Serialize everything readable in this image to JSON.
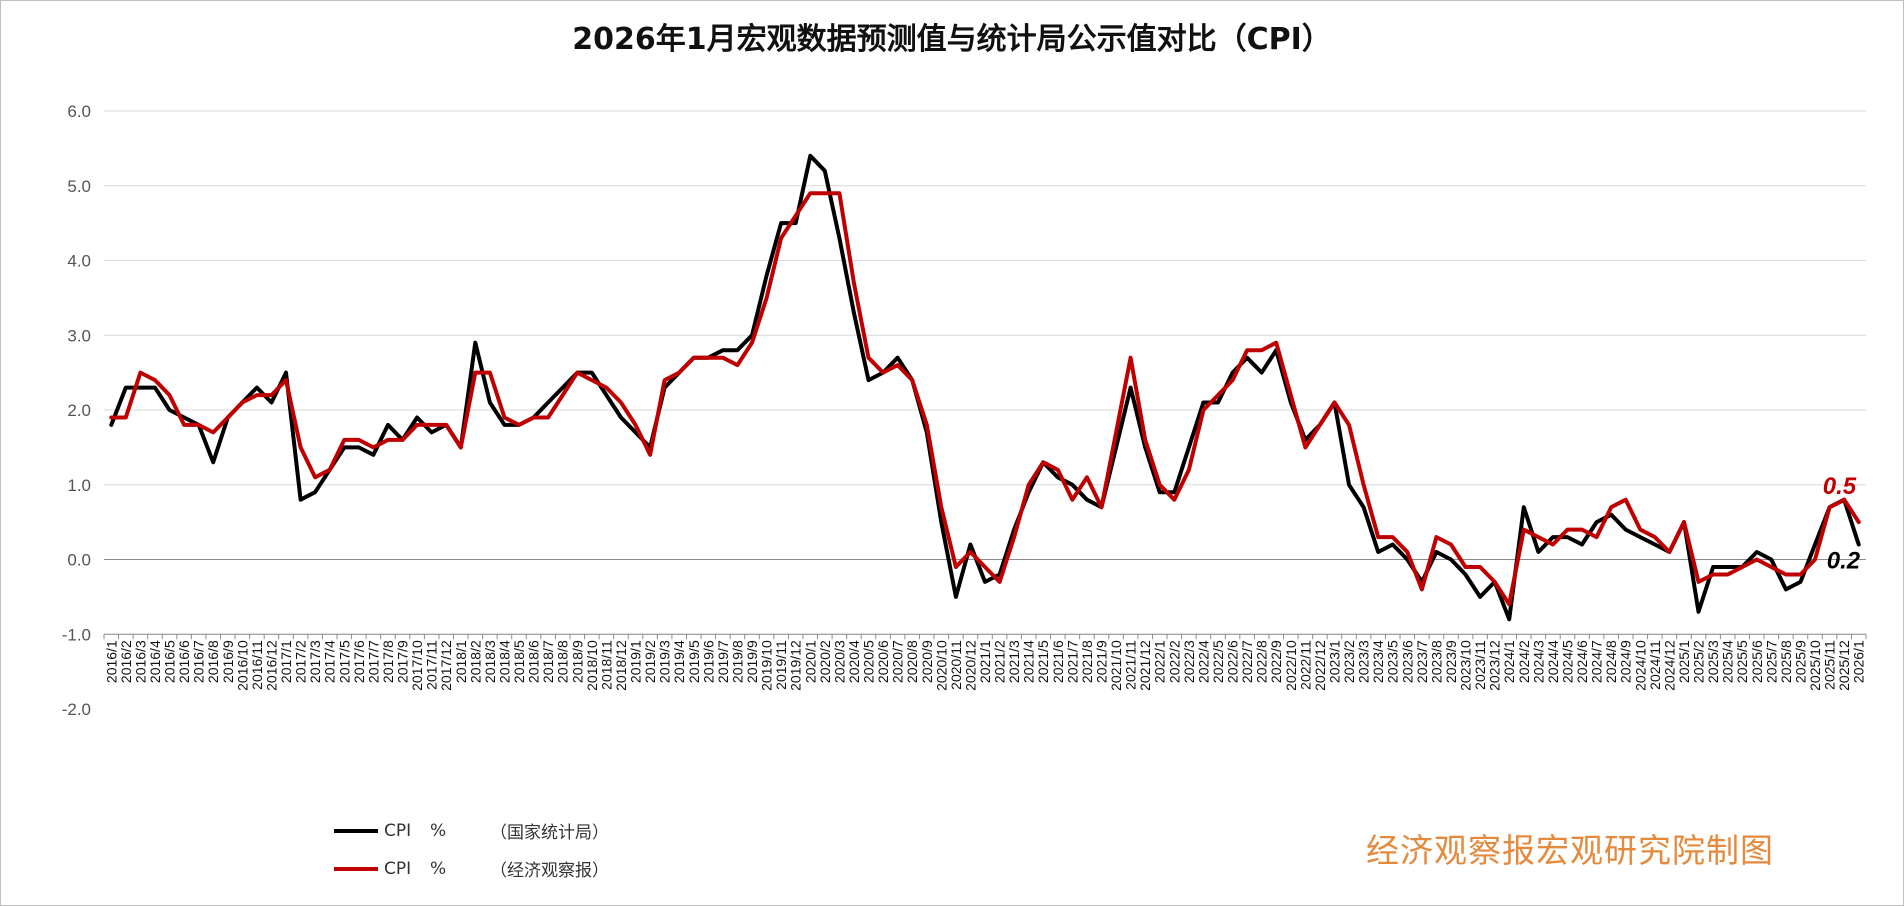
{
  "chart_data": {
    "type": "line",
    "title": "2026年1月宏观数据预测值与统计局公示值对比（CPI）",
    "xlabel": "",
    "ylabel": "",
    "ylim": [
      -2.0,
      6.0
    ],
    "yticks": [
      "6.0",
      "5.0",
      "4.0",
      "3.0",
      "2.0",
      "1.0",
      "0.0",
      "-1.0",
      "-2.0"
    ],
    "grid": true,
    "legend_position": "bottom-left",
    "x": [
      "2016/1",
      "2016/2",
      "2016/3",
      "2016/4",
      "2016/5",
      "2016/6",
      "2016/7",
      "2016/8",
      "2016/9",
      "2016/10",
      "2016/11",
      "2016/12",
      "2017/1",
      "2017/2",
      "2017/3",
      "2017/4",
      "2017/5",
      "2017/6",
      "2017/7",
      "2017/8",
      "2017/9",
      "2017/10",
      "2017/11",
      "2017/12",
      "2018/1",
      "2018/2",
      "2018/3",
      "2018/4",
      "2018/5",
      "2018/6",
      "2018/7",
      "2018/8",
      "2018/9",
      "2018/10",
      "2018/11",
      "2018/12",
      "2019/1",
      "2019/2",
      "2019/3",
      "2019/4",
      "2019/5",
      "2019/6",
      "2019/7",
      "2019/8",
      "2019/9",
      "2019/10",
      "2019/11",
      "2019/12",
      "2020/1",
      "2020/2",
      "2020/3",
      "2020/4",
      "2020/5",
      "2020/6",
      "2020/7",
      "2020/8",
      "2020/9",
      "2020/10",
      "2020/11",
      "2020/12",
      "2021/1",
      "2021/2",
      "2021/3",
      "2021/4",
      "2021/5",
      "2021/6",
      "2021/7",
      "2021/8",
      "2021/9",
      "2021/10",
      "2021/11",
      "2021/12",
      "2022/1",
      "2022/2",
      "2022/3",
      "2022/4",
      "2022/5",
      "2022/6",
      "2022/7",
      "2022/8",
      "2022/9",
      "2022/10",
      "2022/11",
      "2022/12",
      "2023/1",
      "2023/2",
      "2023/3",
      "2023/4",
      "2023/5",
      "2023/6",
      "2023/7",
      "2023/8",
      "2023/9",
      "2023/10",
      "2023/11",
      "2023/12",
      "2024/1",
      "2024/2",
      "2024/3",
      "2024/4",
      "2024/5",
      "2024/6",
      "2024/7",
      "2024/8",
      "2024/9",
      "2024/10",
      "2024/11",
      "2024/12",
      "2025/1",
      "2025/2",
      "2025/3",
      "2025/4",
      "2025/5",
      "2025/6",
      "2025/7",
      "2025/8",
      "2025/9",
      "2025/10",
      "2025/11",
      "2025/12",
      "2026/1"
    ],
    "series": [
      {
        "name": "CPI　%　（国家统计局）",
        "color": "#000000",
        "values": [
          1.8,
          2.3,
          2.3,
          2.3,
          2.0,
          1.9,
          1.8,
          1.3,
          1.9,
          2.1,
          2.3,
          2.1,
          2.5,
          0.8,
          0.9,
          1.2,
          1.5,
          1.5,
          1.4,
          1.8,
          1.6,
          1.9,
          1.7,
          1.8,
          1.5,
          2.9,
          2.1,
          1.8,
          1.8,
          1.9,
          2.1,
          2.3,
          2.5,
          2.5,
          2.2,
          1.9,
          1.7,
          1.5,
          2.3,
          2.5,
          2.7,
          2.7,
          2.8,
          2.8,
          3.0,
          3.8,
          4.5,
          4.5,
          5.4,
          5.2,
          4.3,
          3.3,
          2.4,
          2.5,
          2.7,
          2.4,
          1.7,
          0.5,
          -0.5,
          0.2,
          -0.3,
          -0.2,
          0.4,
          0.9,
          1.3,
          1.1,
          1.0,
          0.8,
          0.7,
          1.5,
          2.3,
          1.5,
          0.9,
          0.9,
          1.5,
          2.1,
          2.1,
          2.5,
          2.7,
          2.5,
          2.8,
          2.1,
          1.6,
          1.8,
          2.1,
          1.0,
          0.7,
          0.1,
          0.2,
          0.0,
          -0.3,
          0.1,
          0.0,
          -0.2,
          -0.5,
          -0.3,
          -0.8,
          0.7,
          0.1,
          0.3,
          0.3,
          0.2,
          0.5,
          0.6,
          0.4,
          0.3,
          0.2,
          0.1,
          0.5,
          -0.7,
          -0.1,
          -0.1,
          -0.1,
          0.1,
          0.0,
          -0.4,
          -0.3,
          0.2,
          0.7,
          0.8,
          0.2
        ],
        "end_label": "0.2"
      },
      {
        "name": "CPI　%　（经济观察报）",
        "color": "#c00000",
        "values": [
          1.9,
          1.9,
          2.5,
          2.4,
          2.2,
          1.8,
          1.8,
          1.7,
          1.9,
          2.1,
          2.2,
          2.2,
          2.4,
          1.5,
          1.1,
          1.2,
          1.6,
          1.6,
          1.5,
          1.6,
          1.6,
          1.8,
          1.8,
          1.8,
          1.5,
          2.5,
          2.5,
          1.9,
          1.8,
          1.9,
          1.9,
          2.2,
          2.5,
          2.4,
          2.3,
          2.1,
          1.8,
          1.4,
          2.4,
          2.5,
          2.7,
          2.7,
          2.7,
          2.6,
          2.9,
          3.5,
          4.3,
          4.6,
          4.9,
          4.9,
          4.9,
          3.7,
          2.7,
          2.5,
          2.6,
          2.4,
          1.8,
          0.7,
          -0.1,
          0.1,
          -0.1,
          -0.3,
          0.3,
          1.0,
          1.3,
          1.2,
          0.8,
          1.1,
          0.7,
          1.7,
          2.7,
          1.6,
          1.0,
          0.8,
          1.2,
          2.0,
          2.2,
          2.4,
          2.8,
          2.8,
          2.9,
          2.2,
          1.5,
          1.8,
          2.1,
          1.8,
          1.0,
          0.3,
          0.3,
          0.1,
          -0.4,
          0.3,
          0.2,
          -0.1,
          -0.1,
          -0.3,
          -0.6,
          0.4,
          0.3,
          0.2,
          0.4,
          0.4,
          0.3,
          0.7,
          0.8,
          0.4,
          0.3,
          0.1,
          0.5,
          -0.3,
          -0.2,
          -0.2,
          -0.1,
          0.0,
          -0.1,
          -0.2,
          -0.2,
          0.0,
          0.7,
          0.8,
          0.5
        ],
        "end_label": "0.5"
      }
    ]
  },
  "legend": {
    "items": [
      {
        "name": "CPI",
        "unit": "%",
        "source": "（国家统计局）",
        "color": "#000000"
      },
      {
        "name": "CPI",
        "unit": "%",
        "source": "（经济观察报）",
        "color": "#c00000"
      }
    ]
  },
  "watermark": "经济观察报宏观研究院制图"
}
